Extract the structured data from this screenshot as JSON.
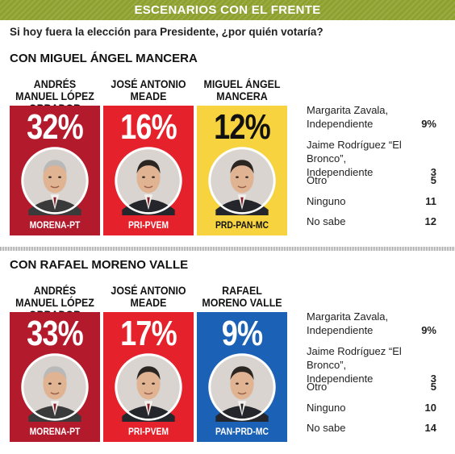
{
  "banner": {
    "title": "ESCENARIOS CON EL FRENTE"
  },
  "question": "Si hoy fuera la elección para Presidente, ¿por quién votaría?",
  "colors": {
    "morena": "#b31a2c",
    "pri": "#e5222c",
    "prd": "#f7d33f",
    "pan": "#1b61b6",
    "banner": "#8ea12f"
  },
  "chart_data": [
    {
      "type": "bar",
      "title": "CON MIGUEL ÁNGEL MANCERA",
      "categories": [
        "ANDRÉS MANUEL LÓPEZ OBRADOR",
        "JOSÉ ANTONIO MEADE",
        "MIGUEL ÁNGEL MANCERA"
      ],
      "values": [
        32,
        16,
        12
      ],
      "value_labels": [
        "32%",
        "16%",
        "12%"
      ],
      "parties": [
        "MORENA-PT",
        "PRI-PVEM",
        "PRD-PAN-MC"
      ],
      "others": [
        {
          "name": "Margarita Zavala, Independiente",
          "value": "9%"
        },
        {
          "name": "Jaime Rodríguez “El Bronco”, Independiente",
          "value": "3"
        },
        {
          "name": "Otro",
          "value": "5"
        },
        {
          "name": "Ninguno",
          "value": "11"
        },
        {
          "name": "No sabe",
          "value": "12"
        }
      ]
    },
    {
      "type": "bar",
      "title": "CON RAFAEL MORENO VALLE",
      "categories": [
        "ANDRÉS MANUEL LÓPEZ OBRADOR",
        "JOSÉ ANTONIO MEADE",
        "RAFAEL MORENO VALLE"
      ],
      "values": [
        33,
        17,
        9
      ],
      "value_labels": [
        "33%",
        "17%",
        "9%"
      ],
      "parties": [
        "MORENA-PT",
        "PRI-PVEM",
        "PAN-PRD-MC"
      ],
      "others": [
        {
          "name": "Margarita Zavala, Independiente",
          "value": "9%"
        },
        {
          "name": "Jaime Rodríguez “El Bronco”, Independiente",
          "value": "3"
        },
        {
          "name": "Otro",
          "value": "5"
        },
        {
          "name": "Ninguno",
          "value": "10"
        },
        {
          "name": "No sabe",
          "value": "14"
        }
      ]
    }
  ]
}
